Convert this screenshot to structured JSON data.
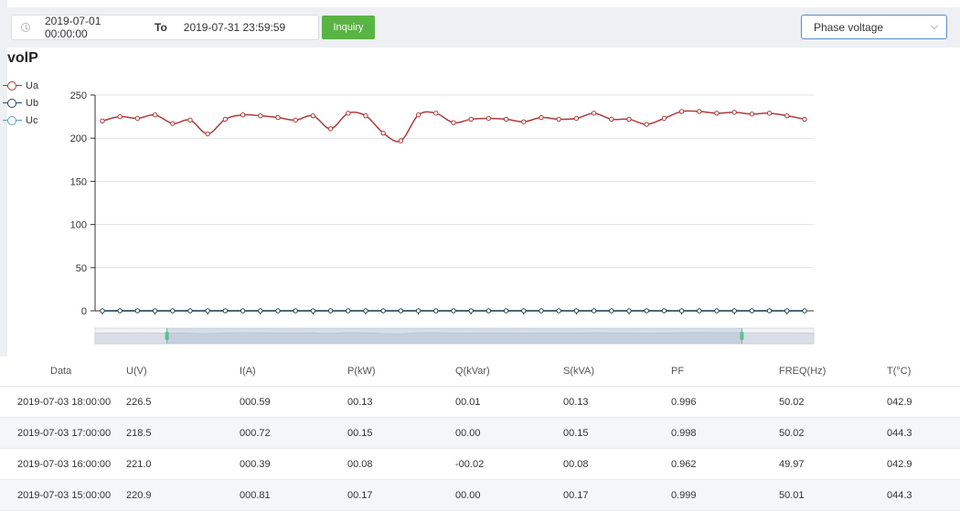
{
  "toolbar": {
    "start_date": "2019-07-01 00:00:00",
    "separator": "To",
    "end_date": "2019-07-31 23:59:59",
    "inquiry_label": "Inquiry",
    "select_value": "Phase voltage",
    "icons": [
      "clock-icon",
      "chevron-down-icon"
    ]
  },
  "colors": {
    "accent_green": "#5ab444",
    "select_border": "#5b8bd0",
    "ua": "#b03a3a",
    "ub": "#2f4554",
    "uc": "#61a0a8"
  },
  "chart_data": {
    "type": "line",
    "title": "volP",
    "ylim": [
      0,
      250
    ],
    "yticks": [
      "250",
      "200",
      "150",
      "100",
      "50",
      "0"
    ],
    "legend_position": "top-left",
    "grid": true,
    "data_zoom": {
      "start": 0.1,
      "end": 0.9
    },
    "series": [
      {
        "name": "Ua",
        "values": [
          220,
          225,
          223,
          227,
          217,
          221,
          205,
          222,
          227,
          226,
          224,
          221,
          226,
          211,
          229,
          226,
          206,
          197,
          227,
          229,
          218,
          222,
          223,
          222,
          219,
          224,
          222,
          223,
          229,
          222,
          222,
          216,
          223,
          231,
          231,
          229,
          230,
          228,
          229,
          226,
          222
        ]
      },
      {
        "name": "Ub",
        "values": [
          0,
          0,
          0,
          0,
          0,
          0,
          0,
          0,
          0,
          0,
          0,
          0,
          0,
          0,
          0,
          0,
          0,
          0,
          0,
          0,
          0,
          0,
          0,
          0,
          0,
          0,
          0,
          0,
          0,
          0,
          0,
          0,
          0,
          0,
          0,
          0,
          0,
          0,
          0,
          0,
          0
        ]
      },
      {
        "name": "Uc",
        "values": [
          0,
          0,
          0,
          0,
          0,
          0,
          0,
          0,
          0,
          0,
          0,
          0,
          0,
          0,
          0,
          0,
          0,
          0,
          0,
          0,
          0,
          0,
          0,
          0,
          0,
          0,
          0,
          0,
          0,
          0,
          0,
          0,
          0,
          0,
          0,
          0,
          0,
          0,
          0,
          0,
          0
        ]
      }
    ]
  },
  "table": {
    "columns": [
      "Data",
      "U(V)",
      "I(A)",
      "P(kW)",
      "Q(kVar)",
      "S(kVA)",
      "PF",
      "FREQ(Hz)",
      "T(°C)"
    ],
    "rows": [
      [
        "2019-07-03 18:00:00",
        "226.5",
        "000.59",
        "00.13",
        "00.01",
        "00.13",
        "0.996",
        "50.02",
        "042.9"
      ],
      [
        "2019-07-03 17:00:00",
        "218.5",
        "000.72",
        "00.15",
        "00.00",
        "00.15",
        "0.998",
        "50.02",
        "044.3"
      ],
      [
        "2019-07-03 16:00:00",
        "221.0",
        "000.39",
        "00.08",
        "-00.02",
        "00.08",
        "0.962",
        "49.97",
        "042.9"
      ],
      [
        "2019-07-03 15:00:00",
        "220.9",
        "000.81",
        "00.17",
        "00.00",
        "00.17",
        "0.999",
        "50.01",
        "044.3"
      ]
    ]
  }
}
